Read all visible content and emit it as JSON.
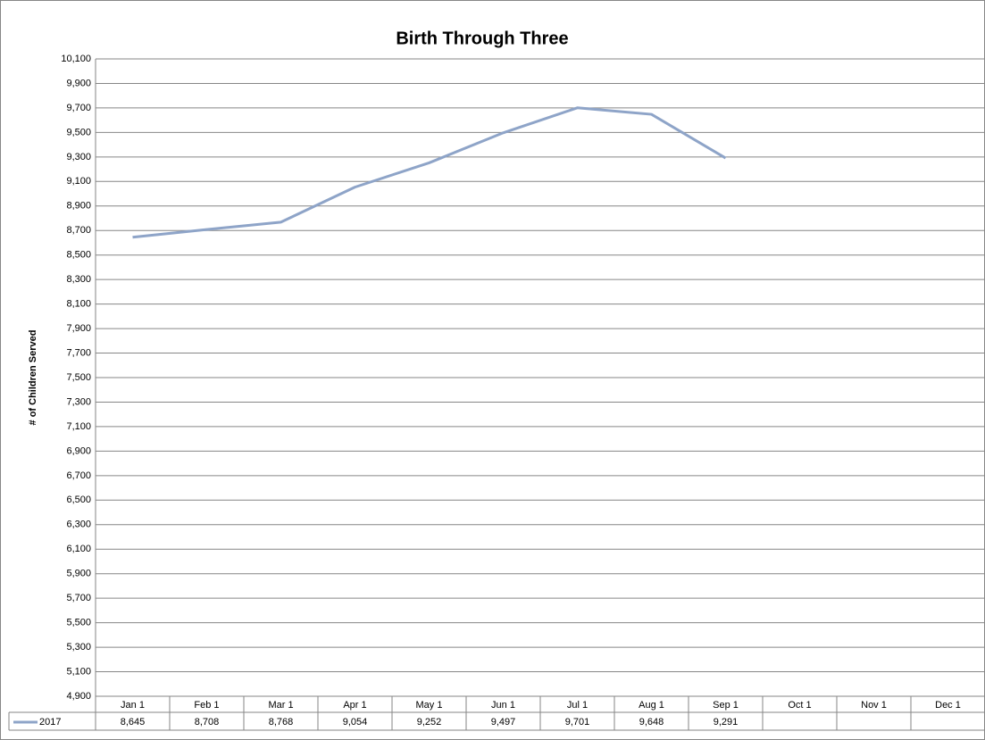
{
  "chart_data": {
    "type": "line",
    "title": "Birth Through Three",
    "y_label": "# of Children Served",
    "categories": [
      "Jan 1",
      "Feb 1",
      "Mar 1",
      "Apr 1",
      "May 1",
      "Jun 1",
      "Jul 1",
      "Aug 1",
      "Sep 1",
      "Oct 1",
      "Nov 1",
      "Dec 1"
    ],
    "series": [
      {
        "name": "2017",
        "color": "#8ea4c8",
        "values": [
          8645,
          8708,
          8768,
          9054,
          9252,
          9497,
          9701,
          9648,
          9291,
          null,
          null,
          null
        ],
        "value_labels": [
          "8,645",
          "8,708",
          "8,768",
          "9,054",
          "9,252",
          "9,497",
          "9,701",
          "9,648",
          "9,291",
          null,
          null,
          null
        ]
      }
    ],
    "ylim": [
      4900,
      10100
    ],
    "yticks": [
      {
        "value": 4900,
        "label": "4,900"
      },
      {
        "value": 5100,
        "label": "5,100"
      },
      {
        "value": 5300,
        "label": "5,300"
      },
      {
        "value": 5500,
        "label": "5,500"
      },
      {
        "value": 5700,
        "label": "5,700"
      },
      {
        "value": 5900,
        "label": "5,900"
      },
      {
        "value": 6100,
        "label": "6,100"
      },
      {
        "value": 6300,
        "label": "6,300"
      },
      {
        "value": 6500,
        "label": "6,500"
      },
      {
        "value": 6700,
        "label": "6,700"
      },
      {
        "value": 6900,
        "label": "6,900"
      },
      {
        "value": 7100,
        "label": "7,100"
      },
      {
        "value": 7300,
        "label": "7,300"
      },
      {
        "value": 7500,
        "label": "7,500"
      },
      {
        "value": 7700,
        "label": "7,700"
      },
      {
        "value": 7900,
        "label": "7,900"
      },
      {
        "value": 8100,
        "label": "8,100"
      },
      {
        "value": 8300,
        "label": "8,300"
      },
      {
        "value": 8500,
        "label": "8,500"
      },
      {
        "value": 8700,
        "label": "8,700"
      },
      {
        "value": 8900,
        "label": "8,900"
      },
      {
        "value": 9100,
        "label": "9,100"
      },
      {
        "value": 9300,
        "label": "9,300"
      },
      {
        "value": 9500,
        "label": "9,500"
      },
      {
        "value": 9700,
        "label": "9,700"
      },
      {
        "value": 9900,
        "label": "9,900"
      },
      {
        "value": 10100,
        "label": "10,100"
      }
    ],
    "grid": true,
    "data_table": true
  }
}
